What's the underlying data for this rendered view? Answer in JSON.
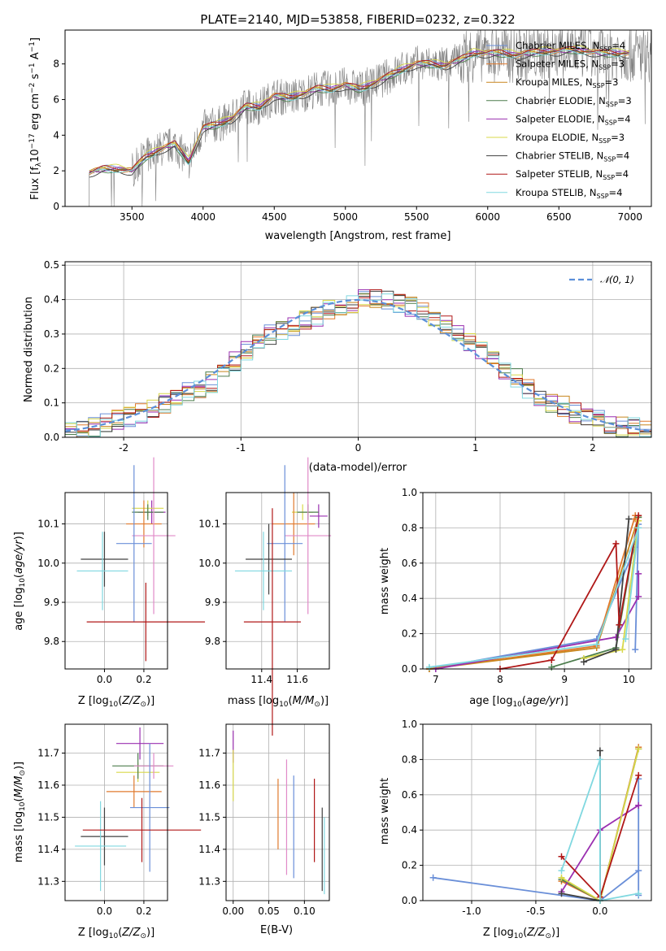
{
  "chart_data": [
    {
      "type": "line",
      "title": "PLATE=2140, MJD=53858, FIBERID=0232, z=0.322",
      "xlabel": "wavelength [Angstrom, rest frame]",
      "ylabel": "Flux [f_λ 10^-17 erg cm^-2 s^-1 A^-1]",
      "xlim": [
        3030,
        7150
      ],
      "ylim": [
        0,
        9.9
      ],
      "xticks": [
        3500,
        4000,
        4500,
        5000,
        5500,
        6000,
        6500,
        7000
      ],
      "yticks": [
        0,
        2,
        4,
        6,
        8
      ],
      "legend_position": "top-right",
      "data_x": [
        3200,
        3300,
        3400,
        3500,
        3600,
        3700,
        3800,
        3900,
        4000,
        4100,
        4200,
        4300,
        4400,
        4500,
        4600,
        4700,
        4800,
        4900,
        5000,
        5100,
        5200,
        5300,
        5400,
        5500,
        5600,
        5700,
        5800,
        5900,
        6000,
        6100,
        6200,
        6300,
        6400,
        6500,
        6600,
        6700,
        6800,
        6900,
        7000
      ],
      "data_y": [
        1.9,
        2.1,
        2.1,
        2.0,
        2.8,
        3.2,
        3.5,
        2.5,
        4.4,
        4.6,
        4.9,
        5.6,
        5.6,
        6.2,
        6.1,
        6.3,
        6.6,
        6.6,
        6.8,
        6.6,
        6.9,
        7.3,
        7.7,
        8.0,
        8.0,
        7.9,
        8.2,
        8.6,
        8.6,
        8.6,
        8.5,
        8.6,
        8.7,
        8.7,
        8.8,
        8.7,
        8.6,
        8.6,
        8.6
      ],
      "series": [
        {
          "name": "Chabrier MILES, N_SSP=4",
          "legend_main": "Chabrier MILES, N",
          "legend_sub": "SSP",
          "legend_tail": "=4",
          "color": "#6a8fd8",
          "offset": 0.1
        },
        {
          "name": "Salpeter MILES, N_SSP=3",
          "legend_main": "Salpeter MILES, N",
          "legend_sub": "SSP",
          "legend_tail": "=3",
          "color": "#e07a2e",
          "offset": -0.05
        },
        {
          "name": "Kroupa MILES, N_SSP=3",
          "legend_main": "Kroupa MILES, N",
          "legend_sub": "SSP",
          "legend_tail": "=3",
          "color": "#c8861e",
          "offset": 0.05
        },
        {
          "name": "Chabrier ELODIE, N_SSP=3",
          "legend_main": "Chabrier ELODIE, N",
          "legend_sub": "SSP",
          "legend_tail": "=3",
          "color": "#4d7d4d",
          "offset": -0.1
        },
        {
          "name": "Salpeter ELODIE, N_SSP=4",
          "legend_main": "Salpeter ELODIE, N",
          "legend_sub": "SSP",
          "legend_tail": "=4",
          "color": "#9a2fb0",
          "offset": 0.0
        },
        {
          "name": "Kroupa ELODIE, N_SSP=3",
          "legend_main": "Kroupa ELODIE, N",
          "legend_sub": "SSP",
          "legend_tail": "=3",
          "color": "#d8d84a",
          "offset": 0.15
        },
        {
          "name": "Chabrier STELIB, N_SSP=4",
          "legend_main": "Chabrier STELIB, N",
          "legend_sub": "SSP",
          "legend_tail": "=4",
          "color": "#404040",
          "offset": -0.15
        },
        {
          "name": "Salpeter STELIB, N_SSP=4",
          "legend_main": "Salpeter STELIB, N",
          "legend_sub": "SSP",
          "legend_tail": "=4",
          "color": "#b01818",
          "offset": 0.08
        },
        {
          "name": "Kroupa STELIB, N_SSP=4",
          "legend_main": "Kroupa STELIB, N",
          "legend_sub": "SSP",
          "legend_tail": "=4",
          "color": "#80d8e0",
          "offset": -0.08
        }
      ],
      "data_color": "#808080"
    },
    {
      "type": "bar",
      "xlabel": "(data-model)/error",
      "ylabel": "Normed distribution",
      "xlim": [
        -2.5,
        2.5
      ],
      "ylim": [
        0,
        0.51
      ],
      "xticks": [
        -2,
        -1,
        0,
        1,
        2
      ],
      "yticks": [
        0.0,
        0.1,
        0.2,
        0.3,
        0.4,
        0.5
      ],
      "legend": "N(0,1)",
      "legend_position": "top-right",
      "bin_width": 0.1,
      "bin_start": -2.5,
      "hist_values": [
        0.02,
        0.02,
        0.03,
        0.04,
        0.05,
        0.06,
        0.07,
        0.08,
        0.1,
        0.11,
        0.13,
        0.14,
        0.16,
        0.19,
        0.22,
        0.25,
        0.28,
        0.3,
        0.31,
        0.32,
        0.34,
        0.35,
        0.37,
        0.38,
        0.39,
        0.4,
        0.4,
        0.4,
        0.39,
        0.38,
        0.37,
        0.35,
        0.33,
        0.31,
        0.28,
        0.25,
        0.22,
        0.19,
        0.17,
        0.14,
        0.12,
        0.1,
        0.09,
        0.07,
        0.06,
        0.05,
        0.04,
        0.03,
        0.03,
        0.02
      ],
      "gaussian_color": "#5b8fd9"
    },
    {
      "type": "scatter",
      "name": "age vs Z",
      "xlabel": "Z [log10(Z/Z☉)]",
      "ylabel": "age [log10(age/yr)]",
      "xlim": [
        -0.2,
        0.32
      ],
      "ylim": [
        9.73,
        10.18
      ],
      "xticks": [
        0.0,
        0.2
      ],
      "yticks": [
        9.8,
        9.9,
        10.0,
        10.1
      ],
      "points": [
        {
          "x": 0.24,
          "y": 10.13,
          "xerr": 0.07,
          "yerr": 0.03,
          "color": "#9a2fb0"
        },
        {
          "x": 0.22,
          "y": 10.14,
          "xerr": 0.08,
          "yerr": 0.02,
          "color": "#d8d84a"
        },
        {
          "x": 0.22,
          "y": 10.13,
          "xerr": 0.08,
          "yerr": 0.02,
          "color": "#4d7d4d"
        },
        {
          "x": 0.2,
          "y": 10.1,
          "xerr": 0.09,
          "yerr": 0.06,
          "color": "#e07a2e"
        },
        {
          "x": 0.25,
          "y": 10.07,
          "xerr": 0.11,
          "yerr": 0.2,
          "color": "#e08ac8"
        },
        {
          "x": 0.15,
          "y": 10.05,
          "xerr": 0.09,
          "yerr": 0.2,
          "color": "#6a8fd8"
        },
        {
          "x": 0.0,
          "y": 10.01,
          "xerr": 0.12,
          "yerr": 0.07,
          "color": "#404040"
        },
        {
          "x": -0.01,
          "y": 9.98,
          "xerr": 0.13,
          "yerr": 0.1,
          "color": "#80d8e0"
        },
        {
          "x": 0.21,
          "y": 9.85,
          "xerr": 0.3,
          "yerr": 0.1,
          "color": "#b01818"
        }
      ]
    },
    {
      "type": "scatter",
      "name": "age vs mass",
      "xlabel": "mass [log10(M/M☉)]",
      "ylabel": "",
      "xlim": [
        11.2,
        11.78
      ],
      "ylim": [
        9.73,
        10.18
      ],
      "xticks": [
        11.4,
        11.6
      ],
      "yticks": [
        9.8,
        9.9,
        10.0,
        10.1
      ],
      "points": [
        {
          "x": 11.72,
          "y": 10.12,
          "xerr": 0.05,
          "yerr": 0.03,
          "color": "#9a2fb0"
        },
        {
          "x": 11.63,
          "y": 10.13,
          "xerr": 0.06,
          "yerr": 0.02,
          "color": "#d8d84a"
        },
        {
          "x": 11.66,
          "y": 10.13,
          "xerr": 0.06,
          "yerr": 0.02,
          "color": "#4d7d4d"
        },
        {
          "x": 11.58,
          "y": 10.1,
          "xerr": 0.12,
          "yerr": 0.08,
          "color": "#e07a2e"
        },
        {
          "x": 11.66,
          "y": 10.07,
          "xerr": 0.13,
          "yerr": 0.2,
          "color": "#e08ac8"
        },
        {
          "x": 11.53,
          "y": 10.05,
          "xerr": 0.1,
          "yerr": 0.2,
          "color": "#6a8fd8"
        },
        {
          "x": 11.44,
          "y": 10.01,
          "xerr": 0.13,
          "yerr": 0.09,
          "color": "#404040"
        },
        {
          "x": 11.41,
          "y": 9.98,
          "xerr": 0.16,
          "yerr": 0.1,
          "color": "#80d8e0"
        },
        {
          "x": 11.46,
          "y": 9.85,
          "xerr": 0.16,
          "yerr": 0.29,
          "color": "#b01818"
        }
      ]
    },
    {
      "type": "line",
      "name": "mass weight vs age",
      "xlabel": "age [log10(age/yr)]",
      "ylabel": "mass weight",
      "xlim": [
        6.8,
        10.35
      ],
      "ylim": [
        0,
        1.0
      ],
      "xticks": [
        7,
        8,
        9,
        10
      ],
      "yticks": [
        0.0,
        0.2,
        0.4,
        0.6,
        0.8,
        1.0
      ],
      "series": [
        {
          "color": "#6a8fd8",
          "x": [
            6.9,
            9.5,
            10.1,
            10.15,
            10.1
          ],
          "y": [
            0.0,
            0.17,
            0.69,
            0.82,
            0.11
          ]
        },
        {
          "color": "#e07a2e",
          "x": [
            6.9,
            9.5,
            10.1,
            10.1
          ],
          "y": [
            0.0,
            0.13,
            0.87,
            0.85
          ]
        },
        {
          "color": "#c8861e",
          "x": [
            6.9,
            9.5,
            10.15
          ],
          "y": [
            0.0,
            0.12,
            0.86
          ]
        },
        {
          "color": "#4d7d4d",
          "x": [
            8.8,
            9.8,
            10.15
          ],
          "y": [
            0.01,
            0.12,
            0.86
          ]
        },
        {
          "color": "#9a2fb0",
          "x": [
            7.0,
            9.8,
            10.15,
            10.15
          ],
          "y": [
            0.0,
            0.18,
            0.41,
            0.54
          ]
        },
        {
          "color": "#d8d84a",
          "x": [
            9.3,
            9.9,
            10.15
          ],
          "y": [
            0.06,
            0.11,
            0.84
          ]
        },
        {
          "color": "#404040",
          "x": [
            9.3,
            9.8,
            10.0
          ],
          "y": [
            0.04,
            0.11,
            0.85
          ]
        },
        {
          "color": "#b01818",
          "x": [
            8.0,
            8.8,
            9.8,
            9.85,
            10.15
          ],
          "y": [
            0.0,
            0.05,
            0.71,
            0.25,
            0.87
          ]
        },
        {
          "color": "#80d8e0",
          "x": [
            6.9,
            9.5,
            10.15,
            9.95
          ],
          "y": [
            0.01,
            0.14,
            0.8,
            0.17
          ]
        }
      ]
    },
    {
      "type": "scatter",
      "name": "mass vs Z",
      "xlabel": "Z [log10(Z/Z☉)]",
      "ylabel": "mass [log10(M/M☉)]",
      "xlim": [
        -0.2,
        0.32
      ],
      "ylim": [
        11.24,
        11.79
      ],
      "xticks": [
        0.0,
        0.2
      ],
      "yticks": [
        11.3,
        11.4,
        11.5,
        11.6,
        11.7
      ],
      "points": [
        {
          "x": 0.18,
          "y": 11.73,
          "xerr": 0.12,
          "yerr": 0.05,
          "color": "#9a2fb0"
        },
        {
          "x": 0.17,
          "y": 11.64,
          "xerr": 0.11,
          "yerr": 0.03,
          "color": "#d8d84a"
        },
        {
          "x": 0.17,
          "y": 11.66,
          "xerr": 0.13,
          "yerr": 0.04,
          "color": "#4d7d4d"
        },
        {
          "x": 0.25,
          "y": 11.66,
          "xerr": 0.1,
          "yerr": 0.04,
          "color": "#e08ac8"
        },
        {
          "x": 0.15,
          "y": 11.58,
          "xerr": 0.14,
          "yerr": 0.05,
          "color": "#e07a2e"
        },
        {
          "x": 0.23,
          "y": 11.53,
          "xerr": 0.1,
          "yerr": 0.2,
          "color": "#6a8fd8"
        },
        {
          "x": 0.0,
          "y": 11.44,
          "xerr": 0.12,
          "yerr": 0.09,
          "color": "#404040"
        },
        {
          "x": -0.02,
          "y": 11.41,
          "xerr": 0.13,
          "yerr": 0.14,
          "color": "#80d8e0"
        },
        {
          "x": 0.19,
          "y": 11.46,
          "xerr": 0.3,
          "yerr": 0.1,
          "color": "#b01818"
        }
      ]
    },
    {
      "type": "scatter",
      "name": "mass vs E(B-V)",
      "xlabel": "E(B-V)",
      "ylabel": "",
      "xlim": [
        -0.01,
        0.135
      ],
      "ylim": [
        11.24,
        11.79
      ],
      "xticks": [
        0.0,
        0.05,
        0.1
      ],
      "yticks": [
        11.3,
        11.4,
        11.5,
        11.6,
        11.7
      ],
      "points": [
        {
          "x": 0.0,
          "y": 11.72,
          "yerr": 0.05,
          "color": "#9a2fb0"
        },
        {
          "x": 0.0,
          "y": 11.63,
          "yerr": 0.08,
          "color": "#d8d84a"
        },
        {
          "x": 0.063,
          "y": 11.51,
          "yerr": 0.11,
          "color": "#e07a2e"
        },
        {
          "x": 0.075,
          "y": 11.5,
          "yerr": 0.18,
          "color": "#e08ac8"
        },
        {
          "x": 0.085,
          "y": 11.47,
          "yerr": 0.16,
          "color": "#6a8fd8"
        },
        {
          "x": 0.114,
          "y": 11.49,
          "yerr": 0.13,
          "color": "#b01818"
        },
        {
          "x": 0.125,
          "y": 11.4,
          "yerr": 0.13,
          "color": "#404040"
        },
        {
          "x": 0.128,
          "y": 11.38,
          "yerr": 0.12,
          "color": "#80d8e0"
        }
      ]
    },
    {
      "type": "line",
      "name": "mass weight vs Z",
      "xlabel": "Z [log10(Z/Z☉)]",
      "ylabel": "mass weight",
      "xlim": [
        -1.38,
        0.4
      ],
      "ylim": [
        0,
        1.0
      ],
      "xticks": [
        -1.0,
        -0.5,
        0.0
      ],
      "yticks": [
        0.0,
        0.2,
        0.4,
        0.6,
        0.8,
        1.0
      ],
      "series": [
        {
          "color": "#6a8fd8",
          "x": [
            -1.3,
            0.0,
            0.3,
            0.3,
            0.3
          ],
          "y": [
            0.13,
            0.0,
            0.17,
            0.69,
            0.03
          ]
        },
        {
          "color": "#e07a2e",
          "x": [
            -0.3,
            0.0,
            0.3
          ],
          "y": [
            0.11,
            0.0,
            0.87
          ]
        },
        {
          "color": "#4d7d4d",
          "x": [
            -0.3,
            0.0,
            0.3
          ],
          "y": [
            0.12,
            0.0,
            0.86
          ]
        },
        {
          "color": "#9a2fb0",
          "x": [
            -0.3,
            0.0,
            0.3,
            0.3
          ],
          "y": [
            0.05,
            0.4,
            0.54,
            0.54
          ]
        },
        {
          "color": "#d8d84a",
          "x": [
            -0.3,
            0.0,
            0.3
          ],
          "y": [
            0.13,
            0.0,
            0.86
          ]
        },
        {
          "color": "#404040",
          "x": [
            -0.3,
            0.0,
            0.0
          ],
          "y": [
            0.04,
            0.0,
            0.85
          ]
        },
        {
          "color": "#b01818",
          "x": [
            -0.3,
            0.0,
            0.3
          ],
          "y": [
            0.25,
            0.02,
            0.71
          ]
        },
        {
          "color": "#80d8e0",
          "x": [
            -0.3,
            0.0,
            0.0,
            0.3
          ],
          "y": [
            0.17,
            0.8,
            0.0,
            0.04
          ]
        }
      ]
    }
  ]
}
